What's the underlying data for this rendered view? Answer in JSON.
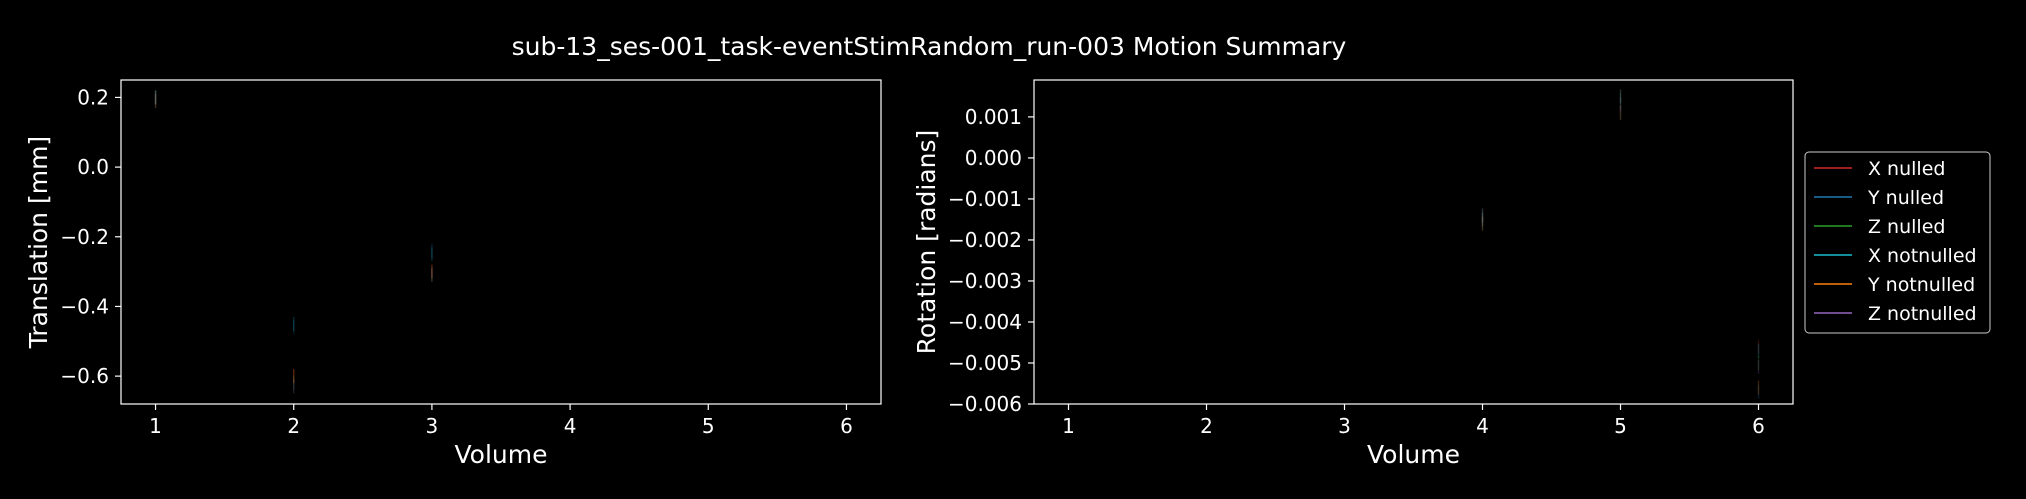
{
  "figure": {
    "title": "sub-13_ses-001_task-eventStimRandom_run-003 Motion Summary",
    "background": "#000000"
  },
  "chart_data": [
    {
      "type": "line",
      "xlabel": "Volume",
      "ylabel": "Translation [mm]",
      "xlim": [
        0.75,
        6.25
      ],
      "ylim": [
        -0.68,
        0.25
      ],
      "xticks": [
        1,
        2,
        3,
        4,
        5,
        6
      ],
      "xtick_labels": [
        "1",
        "2",
        "3",
        "4",
        "5",
        "6"
      ],
      "yticks": [
        0.2,
        0.0,
        -0.2,
        -0.4,
        -0.6
      ],
      "ytick_labels": [
        "0.2",
        "0.0",
        "−0.2",
        "−0.4",
        "−0.6"
      ],
      "grid": false,
      "series": [
        {
          "name": "X nulled",
          "color": "#d62728",
          "x": [
            1,
            2,
            3,
            4,
            5,
            6
          ],
          "y": [
            0.2,
            -0.6,
            -0.3,
            null,
            null,
            null
          ]
        },
        {
          "name": "Y nulled",
          "color": "#1f77b4",
          "x": [
            1,
            2,
            3,
            4,
            5,
            6
          ],
          "y": [
            0.19,
            -0.46,
            -0.24,
            null,
            null,
            null
          ]
        },
        {
          "name": "Z nulled",
          "color": "#2ca02c",
          "x": [
            1,
            2,
            3,
            4,
            5,
            6
          ],
          "y": [
            0.2,
            -0.62,
            -0.31,
            null,
            null,
            null
          ]
        },
        {
          "name": "X notnulled",
          "color": "#17becf",
          "x": [
            1,
            2,
            3,
            4,
            5,
            6
          ],
          "y": [
            0.2,
            -0.45,
            -0.25,
            null,
            null,
            null
          ]
        },
        {
          "name": "Y notnulled",
          "color": "#ff7f0e",
          "x": [
            1,
            2,
            3,
            4,
            5,
            6
          ],
          "y": [
            0.19,
            -0.6,
            -0.3,
            null,
            null,
            null
          ]
        },
        {
          "name": "Z notnulled",
          "color": "#9467bd",
          "x": [
            1,
            2,
            3,
            4,
            5,
            6
          ],
          "y": [
            0.2,
            -0.63,
            -0.31,
            null,
            null,
            null
          ]
        }
      ]
    },
    {
      "type": "line",
      "xlabel": "Volume",
      "ylabel": "Rotation [radians]",
      "xlim": [
        0.75,
        6.25
      ],
      "ylim": [
        -0.006,
        0.0019
      ],
      "xticks": [
        1,
        2,
        3,
        4,
        5,
        6
      ],
      "xtick_labels": [
        "1",
        "2",
        "3",
        "4",
        "5",
        "6"
      ],
      "yticks": [
        0.001,
        0.0,
        -0.001,
        -0.002,
        -0.003,
        -0.004,
        -0.005,
        -0.006
      ],
      "ytick_labels": [
        "0.001",
        "0.000",
        "−0.001",
        "−0.002",
        "−0.003",
        "−0.004",
        "−0.005",
        "−0.006"
      ],
      "grid": false,
      "legend_position": "right",
      "series": [
        {
          "name": "X nulled",
          "color": "#d62728",
          "x": [
            1,
            2,
            3,
            4,
            5,
            6
          ],
          "y": [
            null,
            null,
            null,
            -0.0014,
            0.0015,
            -0.0046
          ]
        },
        {
          "name": "Y nulled",
          "color": "#1f77b4",
          "x": [
            1,
            2,
            3,
            4,
            5,
            6
          ],
          "y": [
            null,
            null,
            null,
            -0.0016,
            0.0011,
            -0.0057
          ]
        },
        {
          "name": "Z nulled",
          "color": "#2ca02c",
          "x": [
            1,
            2,
            3,
            4,
            5,
            6
          ],
          "y": [
            null,
            null,
            null,
            -0.0015,
            0.0014,
            -0.005
          ]
        },
        {
          "name": "X notnulled",
          "color": "#17becf",
          "x": [
            1,
            2,
            3,
            4,
            5,
            6
          ],
          "y": [
            null,
            null,
            null,
            -0.0014,
            0.0015,
            -0.0047
          ]
        },
        {
          "name": "Y notnulled",
          "color": "#ff7f0e",
          "x": [
            1,
            2,
            3,
            4,
            5,
            6
          ],
          "y": [
            null,
            null,
            null,
            -0.0016,
            0.0011,
            -0.0056
          ]
        },
        {
          "name": "Z notnulled",
          "color": "#9467bd",
          "x": [
            1,
            2,
            3,
            4,
            5,
            6
          ],
          "y": [
            null,
            null,
            null,
            -0.0015,
            0.0013,
            -0.0051
          ]
        }
      ]
    }
  ],
  "legend": {
    "items": [
      {
        "label": "X nulled",
        "color": "#d62728"
      },
      {
        "label": "Y nulled",
        "color": "#1f77b4"
      },
      {
        "label": "Z nulled",
        "color": "#2ca02c"
      },
      {
        "label": "X notnulled",
        "color": "#17becf"
      },
      {
        "label": "Y notnulled",
        "color": "#ff7f0e"
      },
      {
        "label": "Z notnulled",
        "color": "#9467bd"
      }
    ]
  }
}
